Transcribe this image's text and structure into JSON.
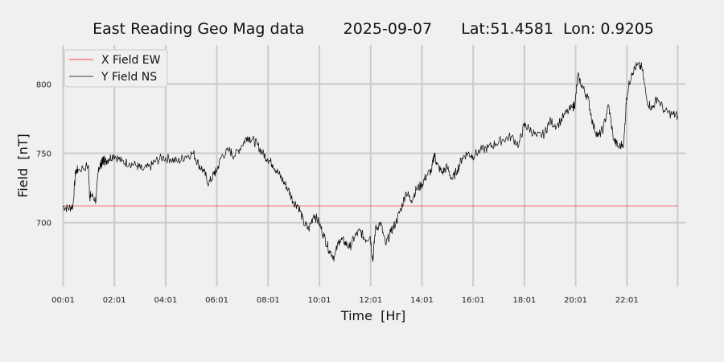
{
  "chart_data": {
    "type": "line",
    "title": "East Reading Geo Mag data        2025-09-07      Lat:51.4581  Lon: 0.9205",
    "xlabel": "Time  [Hr]",
    "ylabel": "Field  [nT]",
    "xlim": [
      0.0,
      24.3
    ],
    "ylim": [
      654,
      828
    ],
    "x_ticks": [
      0.0167,
      2.0167,
      4.0167,
      6.0167,
      8.0167,
      10.0167,
      12.0167,
      14.0167,
      16.0167,
      18.0167,
      20.0167,
      22.0167
    ],
    "x_tick_labels": [
      "00:01",
      "02:01",
      "04:01",
      "06:01",
      "08:01",
      "10:01",
      "12:01",
      "14:01",
      "16:01",
      "18:01",
      "20:01",
      "22:01"
    ],
    "y_ticks": [
      700,
      750,
      800
    ],
    "y_tick_labels": [
      "700",
      "750",
      "800"
    ],
    "grid": true,
    "legend_position": "top-left",
    "series": [
      {
        "name": "X Field EW",
        "color": "#ff0000",
        "x": [
          0.0,
          24.0
        ],
        "y": [
          712,
          712
        ]
      },
      {
        "name": "Y Field NS",
        "color": "#000000",
        "x": [
          0.0,
          0.2,
          0.4,
          0.5,
          0.6,
          1.0,
          1.05,
          1.1,
          1.3,
          1.4,
          1.5,
          1.55,
          1.6,
          1.65,
          1.8,
          2.0,
          2.3,
          2.6,
          2.9,
          3.1,
          3.4,
          3.6,
          3.9,
          4.2,
          4.5,
          4.8,
          5.1,
          5.3,
          5.5,
          5.7,
          5.9,
          6.0,
          6.2,
          6.5,
          6.7,
          7.0,
          7.2,
          7.4,
          7.6,
          7.8,
          8.0,
          8.2,
          8.4,
          8.6,
          8.8,
          9.0,
          9.2,
          9.4,
          9.6,
          9.8,
          10.0,
          10.2,
          10.4,
          10.6,
          10.8,
          11.0,
          11.2,
          11.4,
          11.6,
          11.8,
          12.0,
          12.1,
          12.2,
          12.4,
          12.6,
          12.8,
          13.0,
          13.2,
          13.4,
          13.6,
          13.8,
          14.0,
          14.2,
          14.4,
          14.5,
          14.6,
          14.8,
          15.0,
          15.2,
          15.4,
          15.6,
          15.8,
          16.0,
          16.3,
          16.6,
          16.9,
          17.2,
          17.5,
          17.8,
          18.0,
          18.2,
          18.5,
          18.8,
          19.0,
          19.3,
          19.6,
          19.9,
          20.0,
          20.1,
          20.3,
          20.5,
          20.7,
          20.9,
          21.1,
          21.3,
          21.5,
          21.7,
          21.9,
          22.0,
          22.2,
          22.4,
          22.6,
          22.8,
          23.0,
          23.2,
          23.5,
          23.8,
          24.0
        ],
        "y": [
          712,
          710,
          712,
          737,
          738,
          741,
          718,
          720,
          716,
          740,
          742,
          744,
          746,
          744,
          746,
          749,
          744,
          743,
          741,
          738,
          740,
          744,
          747,
          746,
          744,
          748,
          750,
          742,
          737,
          728,
          735,
          737,
          748,
          752,
          748,
          756,
          762,
          760,
          756,
          750,
          746,
          742,
          736,
          730,
          724,
          715,
          712,
          700,
          695,
          706,
          700,
          690,
          680,
          675,
          688,
          686,
          682,
          690,
          694,
          688,
          690,
          672,
          695,
          700,
          684,
          693,
          700,
          710,
          722,
          716,
          724,
          727,
          734,
          738,
          750,
          742,
          736,
          740,
          731,
          738,
          747,
          750,
          748,
          752,
          754,
          757,
          760,
          762,
          756,
          770,
          768,
          762,
          764,
          773,
          770,
          778,
          783,
          786,
          806,
          797,
          790,
          770,
          762,
          768,
          785,
          760,
          754,
          758,
          790,
          808,
          813,
          812,
          788,
          782,
          790,
          780,
          778,
          777
        ]
      }
    ]
  }
}
